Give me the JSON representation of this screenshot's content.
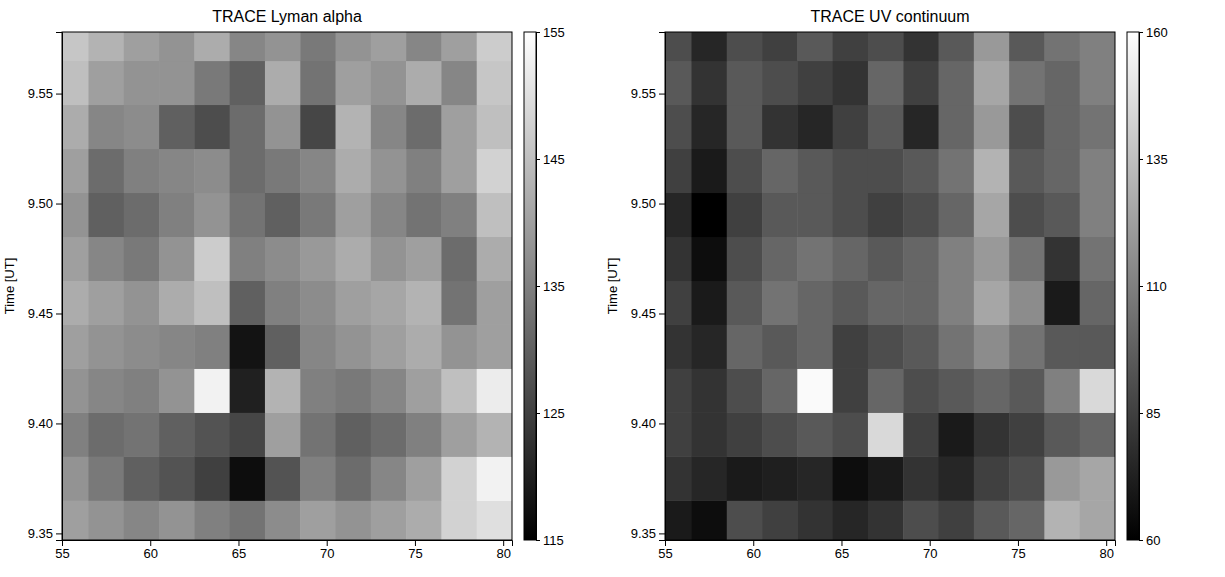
{
  "chart_data": [
    {
      "type": "heatmap",
      "title": "TRACE Lyman alpha",
      "y_label": "Time [UT]",
      "x": [
        55.5,
        57.5,
        59.5,
        61.5,
        63.5,
        65.5,
        67.5,
        69.5,
        71.5,
        73.5,
        75.5,
        77.5,
        79.5
      ],
      "y": [
        9.355,
        9.375,
        9.395,
        9.415,
        9.435,
        9.455,
        9.475,
        9.495,
        9.515,
        9.535,
        9.555,
        9.575
      ],
      "z": [
        [
          140,
          138,
          136,
          138,
          135,
          133,
          137,
          140,
          138,
          140,
          142,
          148,
          150
        ],
        [
          138,
          134,
          130,
          128,
          125,
          117,
          128,
          135,
          132,
          136,
          140,
          148,
          153
        ],
        [
          135,
          132,
          133,
          130,
          128,
          126,
          140,
          133,
          130,
          132,
          135,
          140,
          143
        ],
        [
          138,
          136,
          135,
          138,
          153,
          120,
          143,
          135,
          134,
          136,
          140,
          145,
          152
        ],
        [
          140,
          138,
          137,
          136,
          135,
          118,
          130,
          136,
          138,
          140,
          142,
          138,
          140
        ],
        [
          142,
          140,
          138,
          142,
          145,
          130,
          135,
          137,
          140,
          141,
          143,
          133,
          140
        ],
        [
          140,
          136,
          134,
          138,
          147,
          135,
          137,
          139,
          142,
          138,
          140,
          132,
          142
        ],
        [
          138,
          130,
          132,
          135,
          138,
          133,
          130,
          134,
          140,
          136,
          133,
          135,
          145
        ],
        [
          140,
          132,
          135,
          136,
          137,
          132,
          134,
          136,
          142,
          138,
          135,
          140,
          148
        ],
        [
          142,
          136,
          137,
          130,
          127,
          132,
          138,
          126,
          143,
          136,
          132,
          140,
          145
        ],
        [
          145,
          140,
          138,
          138,
          134,
          130,
          142,
          133,
          140,
          138,
          142,
          136,
          146
        ],
        [
          146,
          143,
          140,
          138,
          142,
          136,
          138,
          134,
          138,
          140,
          136,
          140,
          147
        ]
      ],
      "xlim": [
        55,
        80.5
      ],
      "ylim": [
        9.347,
        9.578
      ],
      "xticks": [
        55,
        60,
        65,
        70,
        75,
        80
      ],
      "yticks": [
        9.35,
        {
          "value": 9.4,
          "label": "9.40"
        },
        9.45,
        {
          "value": 9.5,
          "label": "9.50"
        },
        9.55
      ],
      "colorbar": {
        "range": [
          115,
          155
        ],
        "ticks": [
          115,
          125,
          135,
          145,
          155
        ]
      }
    },
    {
      "type": "heatmap",
      "title": "TRACE UV continuum",
      "y_label": "Time [UT]",
      "x": [
        55.5,
        57.5,
        59.5,
        61.5,
        63.5,
        65.5,
        67.5,
        69.5,
        71.5,
        73.5,
        75.5,
        77.5,
        79.5
      ],
      "y": [
        9.355,
        9.375,
        9.395,
        9.415,
        9.435,
        9.455,
        9.475,
        9.495,
        9.515,
        9.535,
        9.555,
        9.575
      ],
      "z": [
        [
          70,
          65,
          90,
          85,
          80,
          75,
          80,
          90,
          85,
          95,
          100,
          130,
          125
        ],
        [
          80,
          75,
          70,
          72,
          75,
          65,
          70,
          80,
          75,
          85,
          90,
          120,
          125
        ],
        [
          85,
          80,
          85,
          90,
          95,
          90,
          145,
          85,
          70,
          80,
          85,
          95,
          100
        ],
        [
          85,
          80,
          90,
          100,
          158,
          85,
          100,
          90,
          95,
          100,
          95,
          110,
          145
        ],
        [
          80,
          75,
          100,
          95,
          100,
          85,
          90,
          95,
          105,
          115,
          105,
          95,
          95
        ],
        [
          85,
          70,
          95,
          105,
          100,
          95,
          100,
          100,
          110,
          125,
          115,
          70,
          100
        ],
        [
          80,
          65,
          90,
          100,
          105,
          100,
          95,
          100,
          110,
          120,
          105,
          80,
          105
        ],
        [
          75,
          60,
          85,
          95,
          95,
          90,
          85,
          90,
          100,
          125,
          90,
          95,
          110
        ],
        [
          85,
          70,
          90,
          100,
          95,
          90,
          90,
          95,
          105,
          130,
          95,
          100,
          110
        ],
        [
          90,
          75,
          95,
          80,
          75,
          85,
          95,
          75,
          100,
          120,
          90,
          100,
          105
        ],
        [
          95,
          80,
          95,
          90,
          85,
          80,
          100,
          85,
          100,
          125,
          105,
          100,
          110
        ],
        [
          90,
          75,
          90,
          85,
          95,
          85,
          90,
          80,
          95,
          120,
          95,
          105,
          110
        ]
      ],
      "xlim": [
        55,
        80.5
      ],
      "ylim": [
        9.347,
        9.578
      ],
      "xticks": [
        55,
        60,
        65,
        70,
        75,
        80
      ],
      "yticks": [
        9.35,
        {
          "value": 9.4,
          "label": "9.40"
        },
        9.45,
        {
          "value": 9.5,
          "label": "9.50"
        },
        9.55
      ],
      "colorbar": {
        "range": [
          60,
          160
        ],
        "ticks": [
          60,
          85,
          110,
          135,
          160
        ]
      }
    }
  ]
}
